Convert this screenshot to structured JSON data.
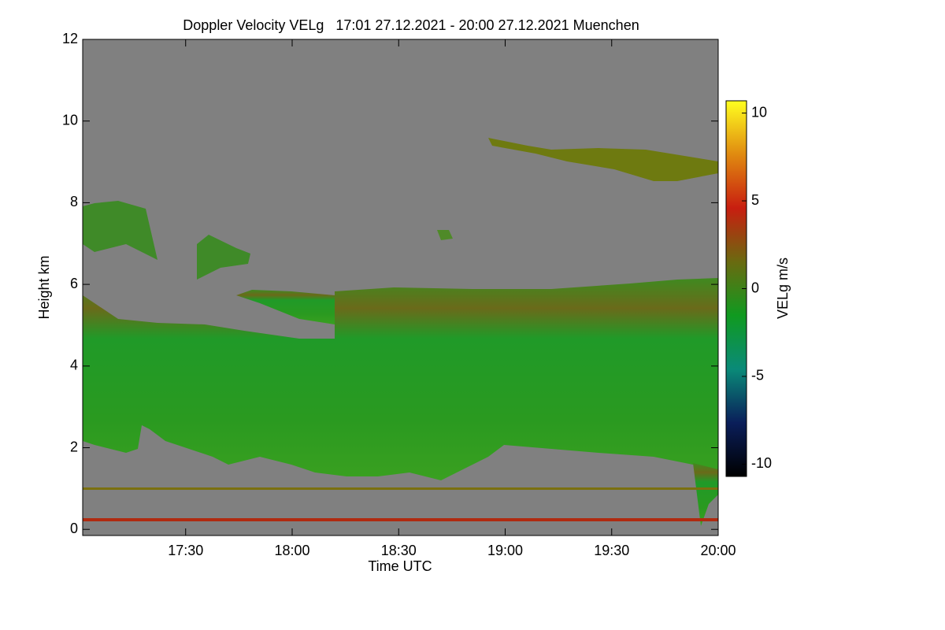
{
  "chart_data": {
    "type": "heatmap",
    "title": "Doppler Velocity VELg   17:01 27.12.2021 - 20:00 27.12.2021 Muenchen",
    "x_label": "Time UTC",
    "y_label": "Height km",
    "xlim": [
      17.0167,
      20.0
    ],
    "xticks": [
      {
        "value": 17.5,
        "label": "17:30"
      },
      {
        "value": 18.0,
        "label": "18:00"
      },
      {
        "value": 18.5,
        "label": "18:30"
      },
      {
        "value": 19.0,
        "label": "19:00"
      },
      {
        "value": 19.5,
        "label": "19:30"
      },
      {
        "value": 20.0,
        "label": "20:00"
      }
    ],
    "ylim": [
      -0.15,
      12
    ],
    "yticks": [
      0,
      2,
      4,
      6,
      8,
      10,
      12
    ],
    "background_color": "#808080",
    "colorbar": {
      "label": "VELg m/s",
      "lim": [
        -10.7,
        10.7
      ],
      "ticks": [
        -10,
        -5,
        0,
        5,
        10
      ],
      "colors": [
        "#000000",
        "#0a1e5a",
        "#0a8a78",
        "#109a20",
        "#6a6a10",
        "#c81e10",
        "#e08a10",
        "#ffff20"
      ]
    }
  }
}
